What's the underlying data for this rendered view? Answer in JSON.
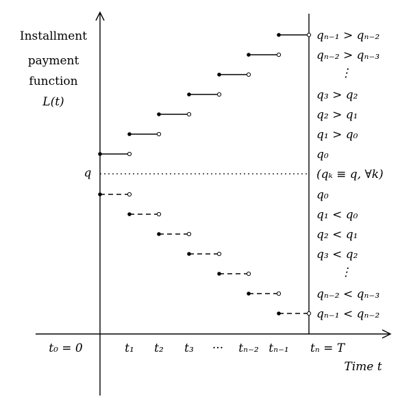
{
  "y_axis_label": [
    "Installment",
    "payment",
    "function"
  ],
  "y_axis_symbol": "L(t)",
  "x_axis_label": "Time t",
  "origin_label": "t₀ = 0",
  "q_label": "q",
  "x_ticks": [
    "t₁",
    "t₂",
    "t₃",
    "···",
    "tₙ₋₂",
    "tₙ₋₁",
    "tₙ = T"
  ],
  "upper_labels": [
    "qₙ₋₁ > qₙ₋₂",
    "qₙ₋₂ > qₙ₋₃",
    "⋮",
    "q₃ > q₂",
    "q₂ > q₁",
    "q₁ > q₀",
    "q₀"
  ],
  "middle_label": "(qₖ ≡ q, ∀k)",
  "lower_labels": [
    "q₀",
    "q₁ < q₀",
    "q₂ < q₁",
    "q₃ < q₂",
    "⋮",
    "qₙ₋₂ < qₙ₋₃",
    "qₙ₋₁ < qₙ₋₂"
  ]
}
